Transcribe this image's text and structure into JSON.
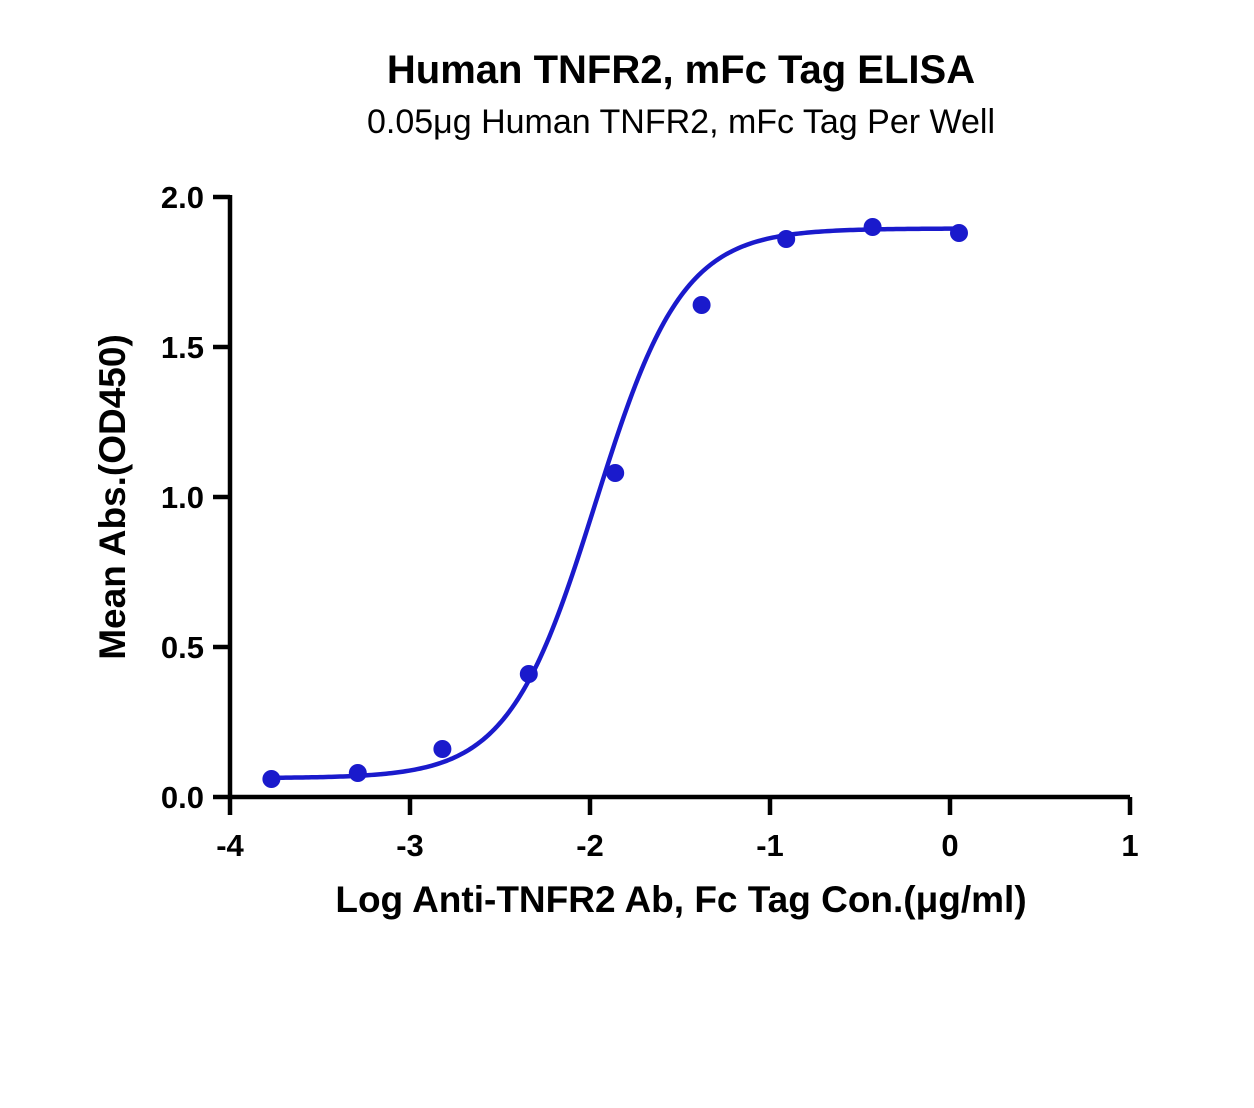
{
  "chart_data": {
    "type": "scatter",
    "title": "Human TNFR2, mFc Tag ELISA",
    "subtitle": "0.05μg Human TNFR2, mFc Tag Per Well",
    "xlabel": "Log Anti-TNFR2 Ab, Fc Tag Con.(μg/ml)",
    "ylabel": "Mean Abs.(OD450)",
    "xlim": [
      -4,
      1
    ],
    "ylim": [
      0,
      2.0
    ],
    "x_ticks": [
      -4,
      -3,
      -2,
      -1,
      0,
      1
    ],
    "x_tick_labels": [
      "-4",
      "-3",
      "-2",
      "-1",
      "0",
      "1"
    ],
    "y_ticks": [
      0,
      0.5,
      1.0,
      1.5,
      2.0
    ],
    "y_tick_labels": [
      "0.0",
      "0.5",
      "1.0",
      "1.5",
      "2.0"
    ],
    "grid": false,
    "legend": "none",
    "series": [
      {
        "x": [
          -3.77,
          -3.29,
          -2.82,
          -2.34,
          -1.86,
          -1.38,
          -0.91,
          -0.43,
          0.05
        ],
        "y": [
          0.06,
          0.08,
          0.16,
          0.41,
          1.08,
          1.64,
          1.86,
          1.9,
          1.88
        ],
        "color": "#1a1acc",
        "fit": "4PL",
        "fit_params": {
          "bottom": 0.063,
          "top": 1.895,
          "log_ec50": -1.97,
          "hill": 1.8
        }
      }
    ]
  }
}
